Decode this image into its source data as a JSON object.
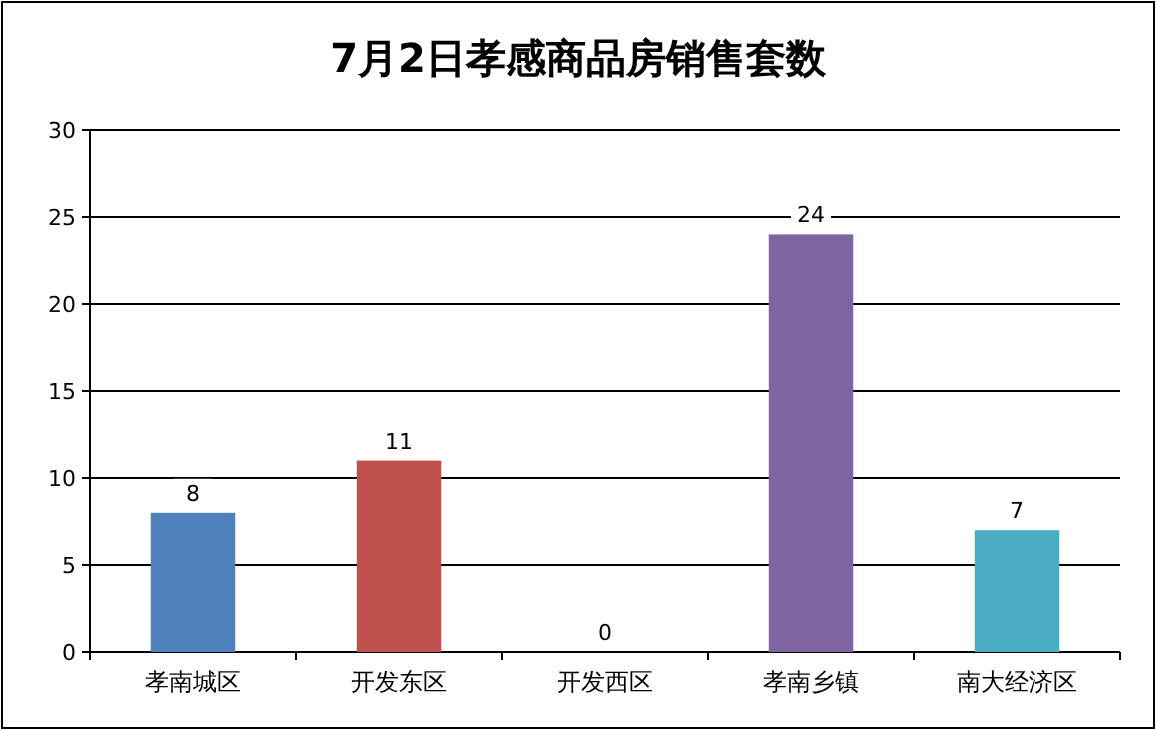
{
  "chart_data": {
    "type": "bar",
    "title": "7月2日孝感商品房销售套数",
    "categories": [
      "孝南城区",
      "开发东区",
      "开发西区",
      "孝南乡镇",
      "南大经济区"
    ],
    "values": [
      8,
      11,
      0,
      24,
      7
    ],
    "colors": [
      "#4f81bd",
      "#c0504d",
      "#9bbb59",
      "#8064a2",
      "#4bacc6"
    ],
    "ylim": [
      0,
      30
    ],
    "yticks": [
      0,
      5,
      10,
      15,
      20,
      25,
      30
    ],
    "grid": "y",
    "data_labels": true
  }
}
